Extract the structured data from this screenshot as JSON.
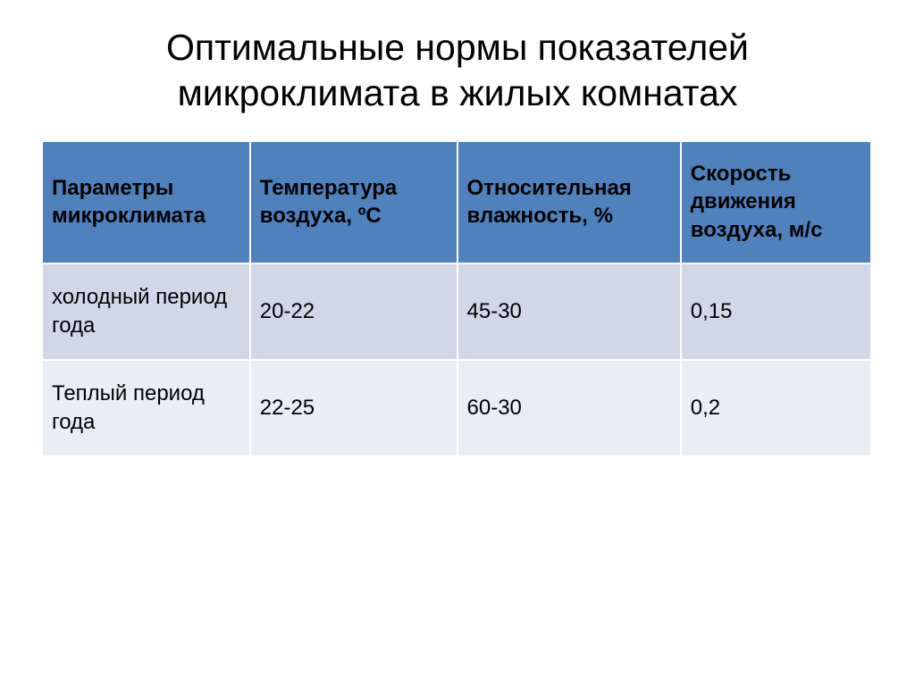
{
  "slide": {
    "title": "Оптимальные нормы показателей микроклимата в жилых комнатах",
    "title_fontsize": 41,
    "title_color": "#000000",
    "background_color": "#ffffff"
  },
  "table": {
    "type": "table",
    "header_bg": "#4f81bd",
    "header_text_color": "#000000",
    "row_bg_odd": "#d0d8e8",
    "row_bg_even": "#e9edf4",
    "cell_text_color": "#000000",
    "border_color": "#ffffff",
    "header_fontsize": 24,
    "cell_fontsize": 24,
    "columns": [
      {
        "label": "Параметры микроклимата",
        "width_pct": 25
      },
      {
        "label": "Температура воздуха, ºС",
        "width_pct": 25
      },
      {
        "label": "Относительная влажность, %",
        "width_pct": 27
      },
      {
        "label": "Скорость движения воздуха, м/с",
        "width_pct": 23
      }
    ],
    "rows": [
      [
        "холодный период года",
        "20-22",
        "45-30",
        "0,15"
      ],
      [
        "Теплый период года",
        "22-25",
        "60-30",
        "0,2"
      ]
    ]
  }
}
